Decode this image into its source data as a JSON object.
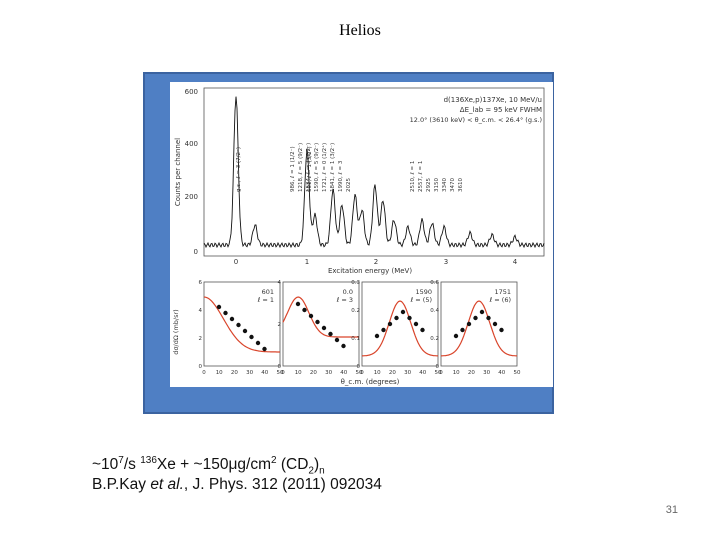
{
  "slide": {
    "title": "Helios",
    "page_number": "31"
  },
  "citation": {
    "line1_prefix": "~10",
    "line1_exp": "7",
    "line1_mid": "/s ",
    "line1_iso": "136",
    "line1_rest": "Xe + ~150μg/cm",
    "line1_exp2": "2",
    "line1_tail": " (CD",
    "line1_sub": "2",
    "line1_close": ")",
    "line1_subn": "n",
    "line2_authors": "B.P.Kay ",
    "line2_etal": "et al.",
    "line2_ref": ", J. Phys. 312 (2011) 092034"
  },
  "figure": {
    "top_panel": {
      "reaction": "d(136Xe,p)137Xe, 10 MeV/u",
      "resolution": "ΔE_lab = 95 keV FWHM",
      "angle_cut": "12.0° (3610 keV) < θ_c.m. < 26.4° (g.s.)",
      "ylabel": "Counts per channel",
      "xlabel": "Excitation energy (MeV)",
      "yticks": [
        "0",
        "200",
        "400",
        "600"
      ],
      "xticks": [
        "0",
        "1",
        "2",
        "3",
        "4"
      ],
      "peak_labels": [
        "g.s., ℓ = 3 (7/2⁻)",
        "601, ℓ = 1 (3/2⁻)",
        "986, ℓ = 1 (1/2⁻)",
        "1218, ℓ = 5 (9/2⁻)",
        "1534, ℓ = 3 (5/2⁻)",
        "1590, ℓ = 5 (9/2⁻)",
        "1721, ℓ = 0 (1/2⁺)",
        "1841, ℓ = 1 (3/2⁻)",
        "1990, ℓ = 3",
        "2025",
        "2510, ℓ = 1",
        "2557, ℓ = 1",
        "2925",
        "3150",
        "3340",
        "3470",
        "3610"
      ]
    },
    "bottom_panels": [
      {
        "label": "601",
        "sub": "ℓ = 1",
        "yticks": [
          "0",
          "2",
          "4",
          "6"
        ]
      },
      {
        "label": "0.0",
        "sub": "ℓ = 3",
        "yticks": [
          "0",
          "2",
          "4"
        ]
      },
      {
        "label": "1590",
        "sub": "ℓ = (5)",
        "yticks": [
          "0",
          "0.1",
          "0.2",
          "0.3"
        ]
      },
      {
        "label": "1751",
        "sub": "ℓ = (6)",
        "yticks": [
          "0",
          "0.2",
          "0.4",
          "0.6"
        ]
      }
    ],
    "bottom_ylabel": "dσ/dΩ (mb/sr)",
    "bottom_xlabel": "θ_c.m. (degrees)",
    "bottom_xticks": [
      "0",
      "10",
      "20",
      "30",
      "40",
      "50"
    ]
  },
  "colors": {
    "frame": "#4f7fc4",
    "fit_curve": "#d9452b",
    "data": "#111111"
  }
}
